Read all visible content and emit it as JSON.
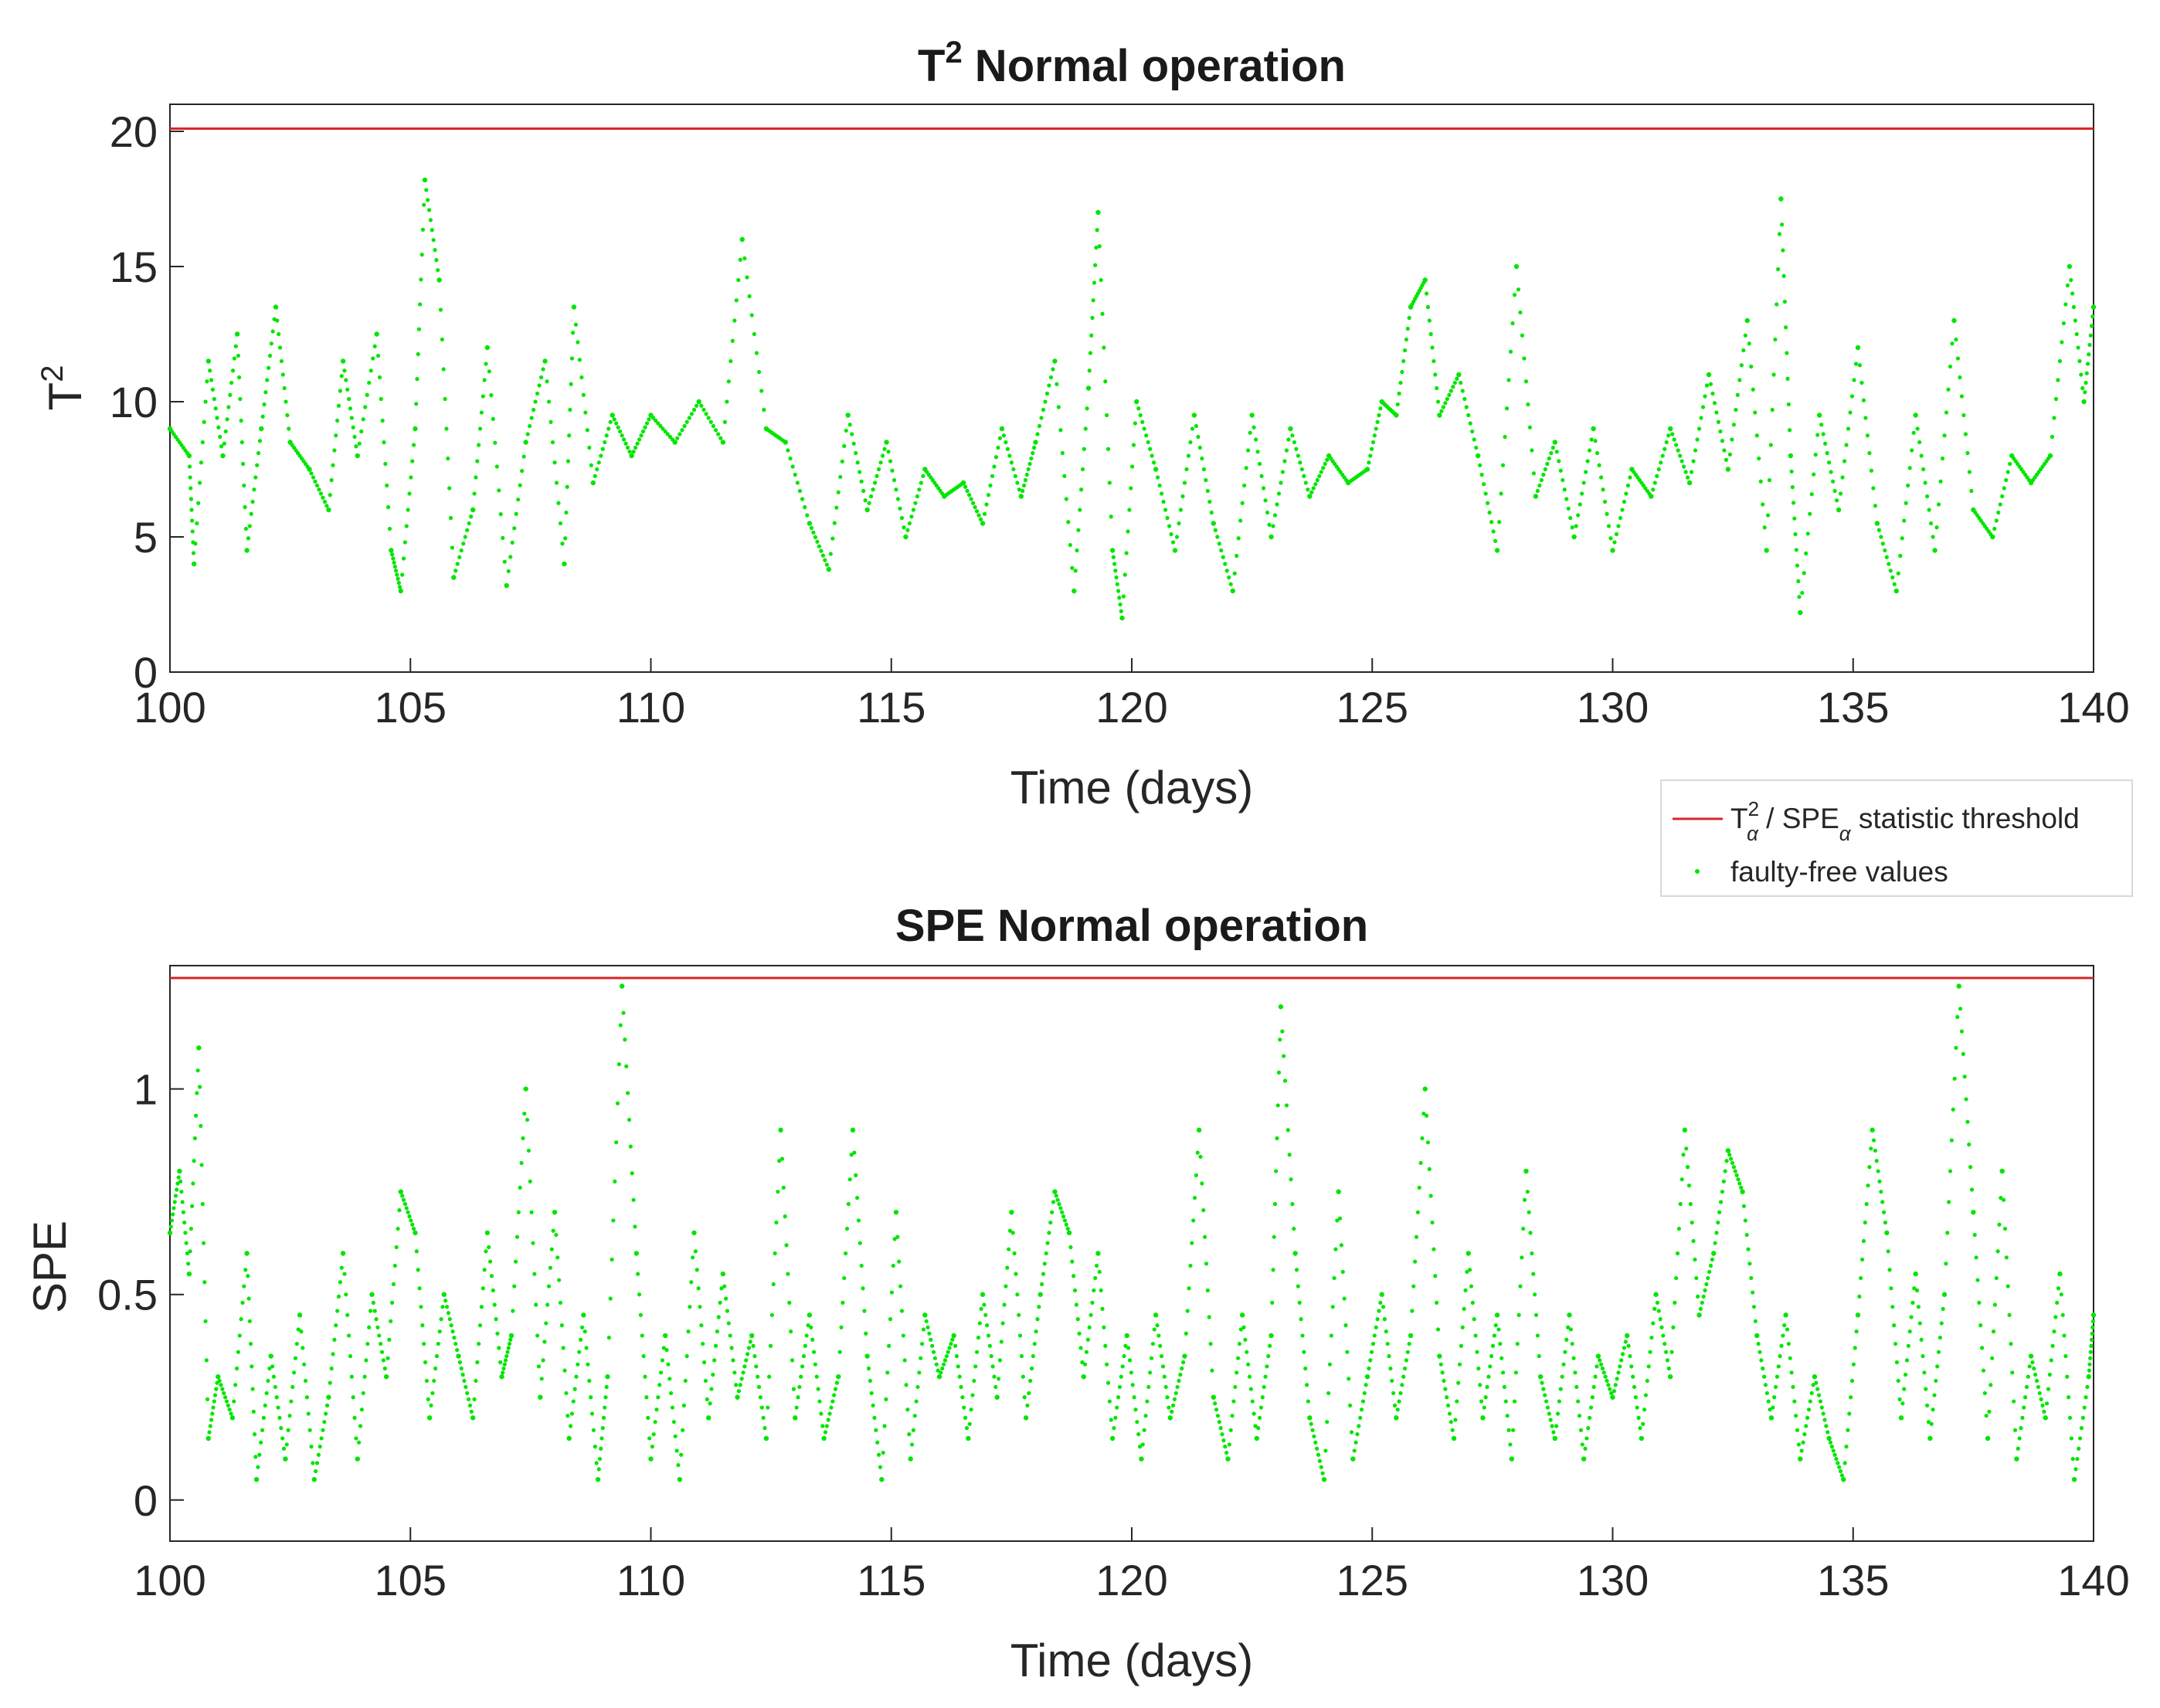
{
  "chart_data": [
    {
      "type": "scatter",
      "title": "T",
      "title_sup": "2",
      "title_rest": " Normal operation",
      "xlabel": "Time (days)",
      "ylabel": "T",
      "ylabel_sup": "2",
      "xlim": [
        100,
        140
      ],
      "ylim": [
        0,
        21
      ],
      "xticks": [
        "100",
        "105",
        "110",
        "115",
        "120",
        "125",
        "130",
        "135",
        "140"
      ],
      "yticks": [
        "0",
        "5",
        "10",
        "15",
        "20"
      ],
      "threshold": 20.1,
      "series": [
        {
          "name": "faulty-free values",
          "color": "#00e600",
          "x": [
            100,
            100.4,
            100.5,
            100.8,
            101.1,
            101.4,
            101.6,
            101.9,
            102.2,
            102.5,
            102.9,
            103.3,
            103.6,
            103.9,
            104.3,
            104.6,
            104.8,
            105.1,
            105.3,
            105.6,
            105.9,
            106.3,
            106.6,
            107,
            107.4,
            107.8,
            108.2,
            108.4,
            108.8,
            109.2,
            109.6,
            110,
            110.5,
            111,
            111.5,
            111.9,
            112.4,
            112.8,
            113.3,
            113.7,
            114.1,
            114.5,
            114.9,
            115.3,
            115.7,
            116.1,
            116.5,
            116.9,
            117.3,
            117.7,
            118,
            118.4,
            118.8,
            119.1,
            119.3,
            119.6,
            119.8,
            120.1,
            120.5,
            120.9,
            121.3,
            121.7,
            122.1,
            122.5,
            122.9,
            123.3,
            123.7,
            124.1,
            124.5,
            124.9,
            125.2,
            125.5,
            125.8,
            126.1,
            126.4,
            126.8,
            127.2,
            127.6,
            128,
            128.4,
            128.8,
            129.2,
            129.6,
            130,
            130.4,
            130.8,
            131.2,
            131.6,
            132,
            132.4,
            132.8,
            133.2,
            133.5,
            133.7,
            133.9,
            134.3,
            134.7,
            135.1,
            135.5,
            135.9,
            136.3,
            136.7,
            137.1,
            137.5,
            137.9,
            138.3,
            138.7,
            139.1,
            139.5,
            139.8,
            140
          ],
          "y": [
            9.0,
            8.0,
            4.0,
            11.5,
            8.0,
            12.5,
            4.5,
            9.0,
            13.5,
            8.5,
            7.5,
            6.0,
            11.5,
            8.0,
            12.5,
            4.5,
            3.0,
            9.0,
            18.2,
            14.5,
            3.5,
            6.0,
            12.0,
            3.2,
            8.5,
            11.5,
            4.0,
            13.5,
            7.0,
            9.5,
            8.0,
            9.5,
            8.5,
            10.0,
            8.5,
            16.0,
            9.0,
            8.5,
            5.5,
            3.8,
            9.5,
            6.0,
            8.5,
            5.0,
            7.5,
            6.5,
            7.0,
            5.5,
            9.0,
            6.5,
            8.5,
            11.5,
            3.0,
            10.5,
            17.0,
            4.5,
            2.0,
            10.0,
            7.5,
            4.5,
            9.5,
            5.5,
            3.0,
            9.5,
            5.0,
            9.0,
            6.5,
            8.0,
            7.0,
            7.5,
            10.0,
            9.5,
            13.5,
            14.5,
            9.5,
            11.0,
            8.0,
            4.5,
            15.0,
            6.5,
            8.5,
            5.0,
            9.0,
            4.5,
            7.5,
            6.5,
            9.0,
            7.0,
            11.0,
            7.5,
            13.0,
            4.5,
            17.5,
            8.0,
            2.2,
            9.5,
            6.0,
            12.0,
            5.5,
            3.0,
            9.5,
            4.5,
            13.0,
            6.0,
            5.0,
            8.0,
            7.0,
            8.0,
            15.0,
            10.0,
            13.5
          ]
        }
      ]
    },
    {
      "type": "scatter",
      "title": "SPE Normal operation",
      "xlabel": "Time (days)",
      "ylabel": "SPE",
      "xlim": [
        100,
        140
      ],
      "ylim": [
        -0.1,
        1.3
      ],
      "xticks": [
        "100",
        "105",
        "110",
        "115",
        "120",
        "125",
        "130",
        "135",
        "140"
      ],
      "yticks": [
        "0",
        "0.5",
        "1"
      ],
      "threshold": 1.27,
      "series": [
        {
          "name": "faulty-free values",
          "color": "#00e600",
          "x": [
            100,
            100.2,
            100.4,
            100.6,
            100.8,
            101.0,
            101.3,
            101.6,
            101.8,
            102.1,
            102.4,
            102.7,
            103.0,
            103.3,
            103.6,
            103.9,
            104.2,
            104.5,
            104.8,
            105.1,
            105.4,
            105.7,
            106.0,
            106.3,
            106.6,
            106.9,
            107.1,
            107.4,
            107.7,
            108.0,
            108.3,
            108.6,
            108.9,
            109.1,
            109.4,
            109.7,
            110.0,
            110.3,
            110.6,
            110.9,
            111.2,
            111.5,
            111.8,
            112.1,
            112.4,
            112.7,
            113.0,
            113.3,
            113.6,
            113.9,
            114.2,
            114.5,
            114.8,
            115.1,
            115.4,
            115.7,
            116.0,
            116.3,
            116.6,
            116.9,
            117.2,
            117.5,
            117.8,
            118.1,
            118.4,
            118.7,
            119.0,
            119.3,
            119.6,
            119.9,
            120.2,
            120.5,
            120.8,
            121.1,
            121.4,
            121.7,
            122.0,
            122.3,
            122.6,
            122.9,
            123.1,
            123.4,
            123.7,
            124.0,
            124.3,
            124.6,
            124.9,
            125.2,
            125.5,
            125.8,
            126.1,
            126.4,
            126.7,
            127.0,
            127.3,
            127.6,
            127.9,
            128.2,
            128.5,
            128.8,
            129.1,
            129.4,
            129.7,
            130.0,
            130.3,
            130.6,
            130.9,
            131.2,
            131.5,
            131.8,
            132.1,
            132.4,
            132.7,
            133.0,
            133.3,
            133.6,
            133.9,
            134.2,
            134.5,
            134.8,
            135.1,
            135.4,
            135.7,
            136.0,
            136.3,
            136.6,
            136.9,
            137.2,
            137.5,
            137.8,
            138.1,
            138.4,
            138.7,
            139.0,
            139.3,
            139.6,
            139.9,
            140
          ],
          "y": [
            0.65,
            0.8,
            0.55,
            1.1,
            0.15,
            0.3,
            0.2,
            0.6,
            0.05,
            0.35,
            0.1,
            0.45,
            0.05,
            0.25,
            0.6,
            0.1,
            0.5,
            0.3,
            0.75,
            0.65,
            0.2,
            0.5,
            0.35,
            0.2,
            0.65,
            0.3,
            0.4,
            1.0,
            0.25,
            0.7,
            0.15,
            0.45,
            0.05,
            0.3,
            1.25,
            0.6,
            0.1,
            0.4,
            0.05,
            0.65,
            0.2,
            0.55,
            0.25,
            0.4,
            0.15,
            0.9,
            0.2,
            0.45,
            0.15,
            0.3,
            0.9,
            0.35,
            0.05,
            0.7,
            0.1,
            0.45,
            0.3,
            0.4,
            0.15,
            0.5,
            0.25,
            0.7,
            0.2,
            0.5,
            0.75,
            0.65,
            0.3,
            0.6,
            0.15,
            0.4,
            0.1,
            0.45,
            0.2,
            0.35,
            0.9,
            0.25,
            0.1,
            0.45,
            0.15,
            0.4,
            1.2,
            0.6,
            0.2,
            0.05,
            0.75,
            0.1,
            0.3,
            0.5,
            0.2,
            0.4,
            1.0,
            0.35,
            0.15,
            0.6,
            0.2,
            0.45,
            0.1,
            0.8,
            0.3,
            0.15,
            0.45,
            0.1,
            0.35,
            0.25,
            0.4,
            0.15,
            0.5,
            0.3,
            0.9,
            0.45,
            0.6,
            0.85,
            0.75,
            0.4,
            0.2,
            0.45,
            0.1,
            0.3,
            0.15,
            0.05,
            0.45,
            0.9,
            0.65,
            0.2,
            0.55,
            0.15,
            0.5,
            1.25,
            0.7,
            0.15,
            0.8,
            0.1,
            0.35,
            0.2,
            0.55,
            0.05,
            0.3,
            0.45
          ]
        }
      ]
    }
  ],
  "legend": {
    "threshold_main": "T",
    "threshold_sup": "2",
    "threshold_sub1": "α",
    "threshold_mid": " / SPE",
    "threshold_sub2": "α",
    "threshold_end": " statistic threshold",
    "values_label": "faulty-free values",
    "threshold_color": "#d62728",
    "values_color": "#00e600"
  }
}
